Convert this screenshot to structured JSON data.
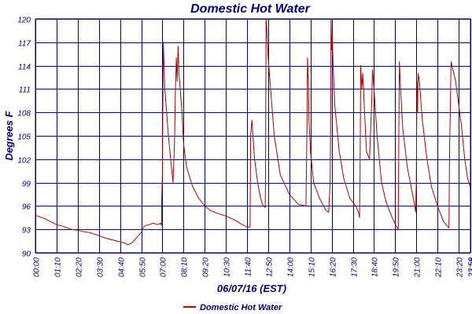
{
  "chart_data": {
    "type": "line",
    "title": "Domestic Hot Water",
    "xlabel": "06/07/16 (EST)",
    "ylabel": "Degrees F",
    "ylim": [
      90,
      120
    ],
    "y_ticks": [
      90,
      93,
      96,
      99,
      102,
      105,
      108,
      111,
      114,
      117,
      120
    ],
    "x_range_hours": [
      0,
      23.983
    ],
    "x_ticks": [
      "00:00",
      "01:10",
      "02:20",
      "03:30",
      "04:40",
      "05:50",
      "07:00",
      "08:10",
      "09:20",
      "10:30",
      "11:40",
      "12:50",
      "14:00",
      "15:10",
      "16:20",
      "17:30",
      "18:40",
      "19:50",
      "21:00",
      "22:10",
      "23:20",
      "23:58",
      "23:59"
    ],
    "grid": true,
    "legend_position": "bottom-center",
    "series": [
      {
        "name": "Domestic Hot Water",
        "color": "#b00000",
        "x": [
          "00:00",
          "00:30",
          "01:00",
          "01:10",
          "01:30",
          "02:00",
          "02:20",
          "02:40",
          "03:00",
          "03:30",
          "03:50",
          "04:10",
          "04:40",
          "05:00",
          "05:05",
          "05:20",
          "05:50",
          "06:00",
          "06:15",
          "06:30",
          "06:45",
          "06:55",
          "06:57",
          "06:58",
          "07:00",
          "07:03",
          "07:08",
          "07:20",
          "07:30",
          "07:35",
          "07:40",
          "07:43",
          "07:46",
          "07:49",
          "07:52",
          "07:55",
          "08:05",
          "08:10",
          "08:20",
          "08:40",
          "09:00",
          "09:20",
          "09:40",
          "10:00",
          "10:30",
          "11:00",
          "11:20",
          "11:40",
          "11:50",
          "11:52",
          "11:56",
          "12:05",
          "12:15",
          "12:25",
          "12:30",
          "12:35",
          "12:38",
          "12:40",
          "12:41",
          "12:43",
          "12:45",
          "12:50",
          "13:10",
          "13:30",
          "14:00",
          "14:30",
          "14:55",
          "14:58",
          "15:00",
          "15:03",
          "15:05",
          "15:10",
          "15:20",
          "15:40",
          "16:00",
          "16:10",
          "16:15",
          "16:17",
          "16:18",
          "16:20",
          "16:22",
          "16:25",
          "16:30",
          "16:45",
          "17:00",
          "17:20",
          "17:40",
          "17:50",
          "17:52",
          "17:54",
          "17:56",
          "18:00",
          "18:03",
          "18:10",
          "18:15",
          "18:25",
          "18:30",
          "18:33",
          "18:35",
          "18:40",
          "18:50",
          "19:05",
          "19:20",
          "19:40",
          "19:55",
          "20:00",
          "20:02",
          "20:04",
          "20:08",
          "20:15",
          "20:30",
          "20:45",
          "20:55",
          "20:58",
          "21:00",
          "21:02",
          "21:04",
          "21:06",
          "21:10",
          "21:20",
          "21:35",
          "21:50",
          "22:10",
          "22:30",
          "22:45",
          "22:48",
          "22:50",
          "22:55",
          "23:10",
          "23:30",
          "23:40",
          "23:50",
          "23:58",
          "23:59"
        ],
        "values": [
          94.8,
          94.4,
          93.8,
          93.6,
          93.4,
          93.0,
          92.9,
          92.7,
          92.6,
          92.2,
          91.9,
          91.7,
          91.4,
          91.2,
          91.0,
          91.3,
          92.6,
          93.4,
          93.6,
          93.8,
          93.6,
          93.8,
          93.5,
          97.0,
          100.0,
          117.0,
          111.0,
          105.0,
          101.0,
          99.0,
          104.0,
          110.5,
          115.0,
          112.0,
          116.5,
          113.0,
          108.0,
          104.0,
          101.0,
          98.5,
          97.0,
          96.0,
          95.4,
          95.1,
          94.7,
          94.2,
          93.7,
          93.3,
          93.3,
          105.0,
          107.0,
          102.0,
          99.0,
          97.0,
          96.3,
          96.0,
          95.9,
          95.8,
          99.0,
          120.0,
          119.0,
          115.0,
          105.0,
          100.0,
          97.5,
          96.2,
          96.0,
          105.0,
          115.0,
          112.0,
          107.0,
          103.0,
          99.0,
          97.0,
          95.5,
          95.2,
          99.0,
          110.0,
          120.0,
          116.0,
          118.0,
          114.0,
          109.0,
          103.0,
          99.5,
          97.0,
          96.0,
          95.0,
          94.5,
          100.0,
          114.0,
          111.0,
          113.0,
          107.0,
          103.0,
          102.0,
          107.0,
          110.0,
          113.5,
          111.0,
          105.0,
          99.0,
          96.5,
          94.5,
          93.3,
          93.0,
          104.0,
          114.5,
          111.0,
          106.0,
          101.0,
          98.0,
          96.0,
          95.2,
          99.0,
          112.0,
          108.0,
          113.0,
          112.0,
          107.0,
          102.0,
          98.5,
          96.0,
          94.0,
          93.3,
          93.2,
          103.0,
          114.5,
          112.0,
          106.0,
          102.0,
          99.5,
          98.5,
          98.0
        ]
      }
    ]
  }
}
